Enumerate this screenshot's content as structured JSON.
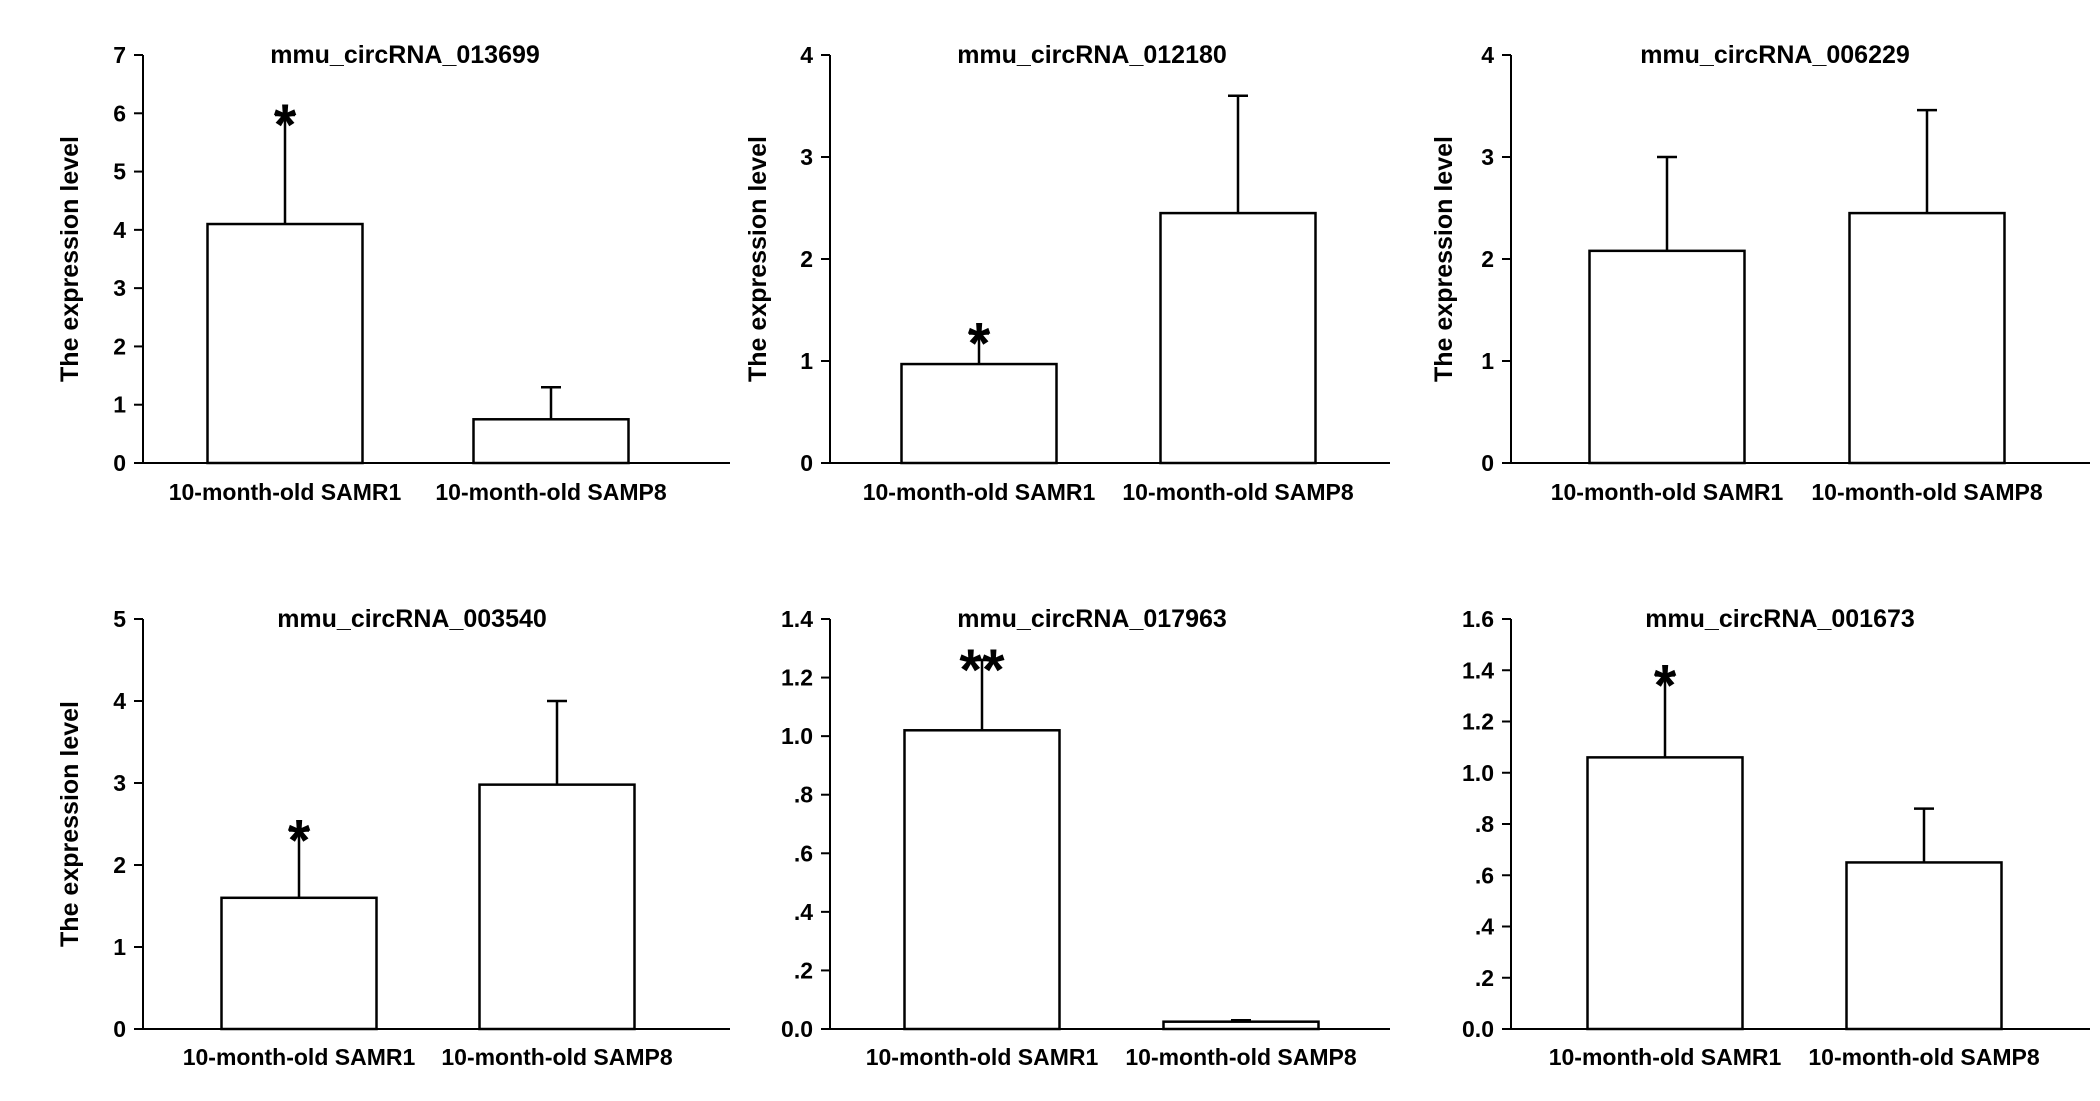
{
  "chart_data": [
    {
      "type": "bar",
      "title": "mmu_circRNA_013699",
      "ylabel": "The expression level",
      "categories": [
        "10-month-old SAMR1",
        "10-month-old SAMP8"
      ],
      "values": [
        4.1,
        0.75
      ],
      "error_upper": [
        5.97,
        1.3
      ],
      "significance": [
        "*",
        ""
      ],
      "ylim": [
        0,
        7
      ],
      "yticks": [
        0,
        1,
        2,
        3,
        4,
        5,
        6,
        7
      ],
      "ytick_labels": [
        "0",
        "1",
        "2",
        "3",
        "4",
        "5",
        "6",
        "7"
      ]
    },
    {
      "type": "bar",
      "title": "mmu_circRNA_012180",
      "ylabel": "The expression level",
      "categories": [
        "10-month-old SAMR1",
        "10-month-old SAMP8"
      ],
      "values": [
        0.97,
        2.45
      ],
      "error_upper": [
        1.27,
        3.6
      ],
      "significance": [
        "*",
        ""
      ],
      "ylim": [
        0,
        4
      ],
      "yticks": [
        0,
        1,
        2,
        3,
        4
      ],
      "ytick_labels": [
        "0",
        "1",
        "2",
        "3",
        "4"
      ]
    },
    {
      "type": "bar",
      "title": "mmu_circRNA_006229",
      "ylabel": "The expression level",
      "categories": [
        "10-month-old SAMR1",
        "10-month-old SAMP8"
      ],
      "values": [
        2.08,
        2.45
      ],
      "error_upper": [
        3.0,
        3.46
      ],
      "significance": [
        "",
        ""
      ],
      "ylim": [
        0,
        4
      ],
      "yticks": [
        0,
        1,
        2,
        3,
        4
      ],
      "ytick_labels": [
        "0",
        "1",
        "2",
        "3",
        "4"
      ]
    },
    {
      "type": "bar",
      "title": "mmu_circRNA_003540",
      "ylabel": "The expression level",
      "categories": [
        "10-month-old SAMR1",
        "10-month-old SAMP8"
      ],
      "values": [
        1.6,
        2.98
      ],
      "error_upper": [
        2.42,
        4.0
      ],
      "significance": [
        "*",
        ""
      ],
      "ylim": [
        0,
        5
      ],
      "yticks": [
        0,
        1,
        2,
        3,
        4,
        5
      ],
      "ytick_labels": [
        "0",
        "1",
        "2",
        "3",
        "4",
        "5"
      ]
    },
    {
      "type": "bar",
      "title": "mmu_circRNA_017963",
      "ylabel": "",
      "categories": [
        "10-month-old SAMR1",
        "10-month-old SAMP8"
      ],
      "values": [
        1.02,
        0.025
      ],
      "error_upper": [
        1.26,
        0.03
      ],
      "significance": [
        "**",
        ""
      ],
      "ylim": [
        0,
        1.4
      ],
      "yticks": [
        0,
        0.2,
        0.4,
        0.6,
        0.8,
        1.0,
        1.2,
        1.4
      ],
      "ytick_labels": [
        "0.0",
        ".2",
        ".4",
        ".6",
        ".8",
        "1.0",
        "1.2",
        "1.4"
      ]
    },
    {
      "type": "bar",
      "title": "mmu_circRNA_001673",
      "ylabel": "",
      "categories": [
        "10-month-old SAMR1",
        "10-month-old SAMP8"
      ],
      "values": [
        1.06,
        0.65
      ],
      "error_upper": [
        1.38,
        0.86
      ],
      "significance": [
        "*",
        ""
      ],
      "ylim": [
        0,
        1.6
      ],
      "yticks": [
        0,
        0.2,
        0.4,
        0.6,
        0.8,
        1.0,
        1.2,
        1.4,
        1.6
      ],
      "ytick_labels": [
        "0.0",
        ".2",
        ".4",
        ".6",
        ".8",
        "1.0",
        "1.2",
        "1.4",
        "1.6"
      ]
    }
  ]
}
